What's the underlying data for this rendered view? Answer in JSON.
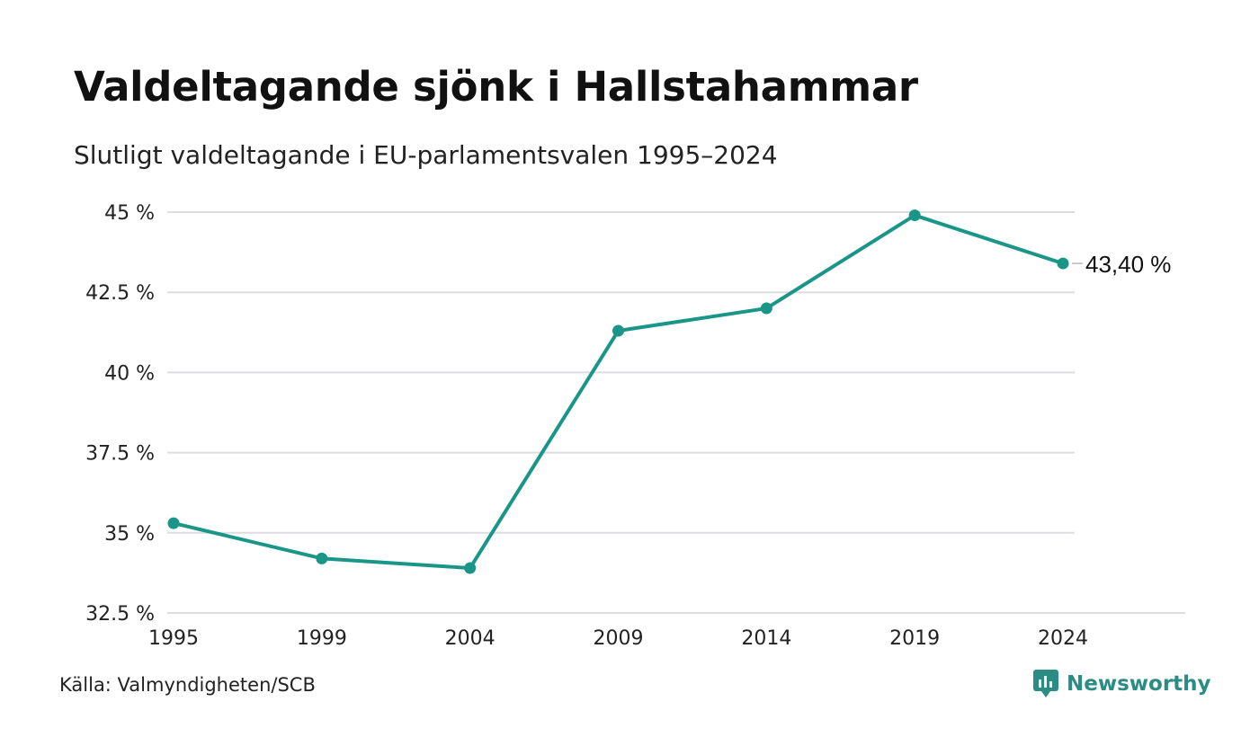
{
  "header": {
    "title": "Valdeltagande sjönk i Hallstahammar",
    "subtitle": "Slutligt valdeltagande i EU-parlamentsvalen 1995–2024"
  },
  "footer": {
    "source": "Källa: Valmyndigheten/SCB",
    "brand": "Newsworthy",
    "brand_icon": "newsworthy-logo-icon"
  },
  "colors": {
    "line": "#1a9688",
    "grid": "#dcdde0",
    "brand": "#2a8c83"
  },
  "chart_data": {
    "type": "line",
    "title": "Valdeltagande sjönk i Hallstahammar",
    "subtitle": "Slutligt valdeltagande i EU-parlamentsvalen 1995–2024",
    "x": [
      "1995",
      "1999",
      "2004",
      "2009",
      "2014",
      "2019",
      "2024"
    ],
    "series": [
      {
        "values": [
          35.3,
          34.2,
          33.9,
          41.3,
          42.0,
          44.9,
          43.4
        ]
      }
    ],
    "ylim": [
      32.5,
      45
    ],
    "yticks": [
      32.5,
      35,
      37.5,
      40,
      42.5,
      45
    ],
    "ytick_labels": [
      "32.5 %",
      "35 %",
      "37.5 %",
      "40 %",
      "42.5 %",
      "45 %"
    ],
    "end_label": "43,40 %",
    "grid": true,
    "legend": "none",
    "xlabel": "",
    "ylabel": ""
  }
}
